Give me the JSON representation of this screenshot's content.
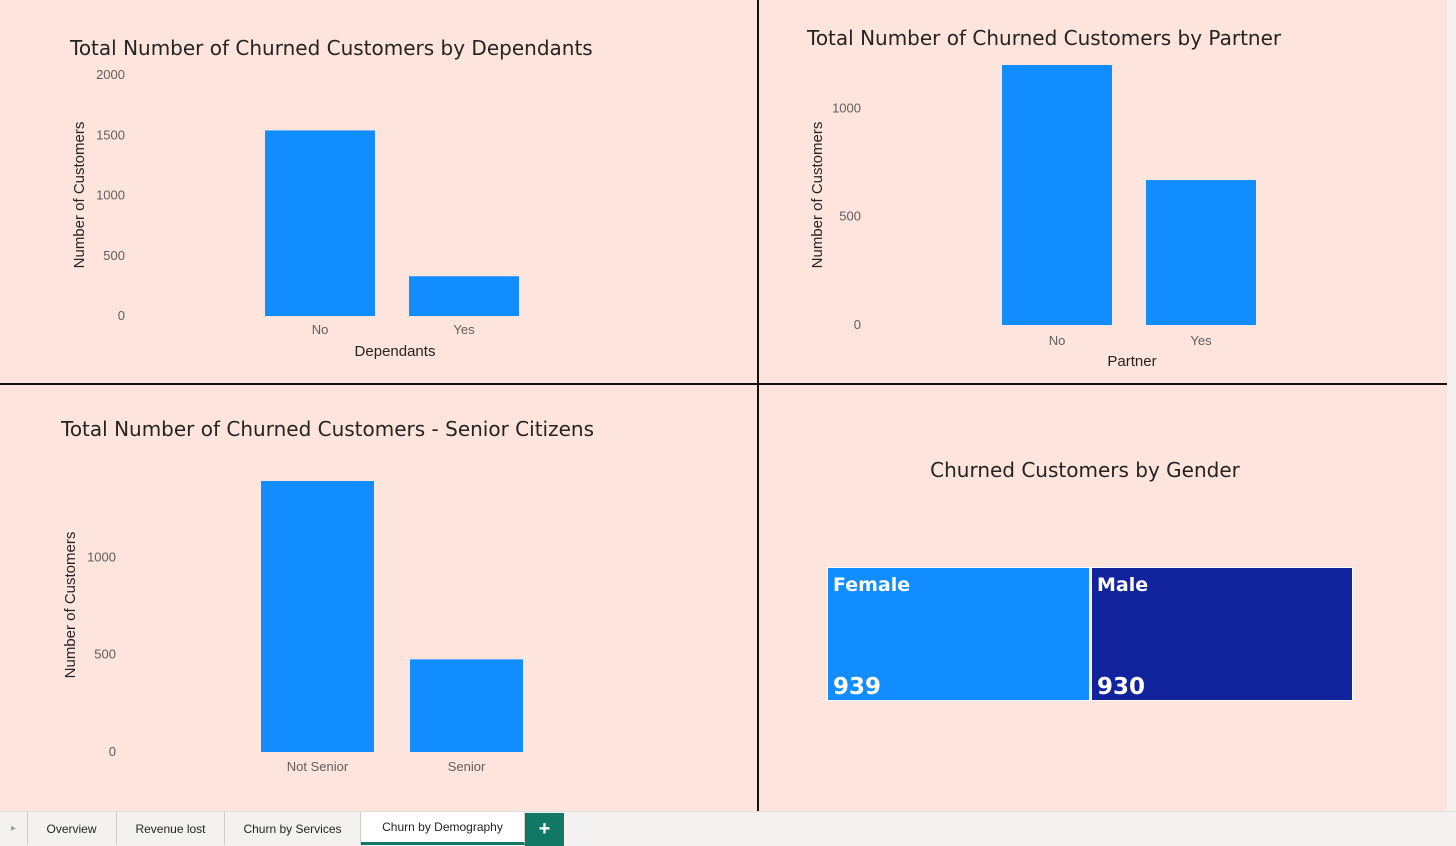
{
  "chart_data": [
    {
      "type": "bar",
      "title": "Total Number of Churned Customers by Dependants",
      "xlabel": "Dependants",
      "ylabel": "Number of Customers",
      "categories": [
        "No",
        "Yes"
      ],
      "values": [
        1540,
        330
      ],
      "ylim": [
        0,
        2000
      ],
      "yticks": [
        0,
        500,
        1000,
        1500,
        2000
      ],
      "color": "#118dff",
      "grid": false
    },
    {
      "type": "bar",
      "title": "Total Number of Churned Customers by Partner",
      "xlabel": "Partner",
      "ylabel": "Number of Customers",
      "categories": [
        "No",
        "Yes"
      ],
      "values": [
        1200,
        669
      ],
      "ylim": [
        0,
        1200
      ],
      "yticks": [
        0,
        500,
        1000
      ],
      "color": "#118dff",
      "grid": false
    },
    {
      "type": "bar",
      "title": "Total Number of Churned Customers - Senior Citizens",
      "xlabel": "",
      "ylabel": "Number of Customers",
      "categories": [
        "Not Senior",
        "Senior"
      ],
      "values": [
        1393,
        476
      ],
      "ylim": [
        0,
        1393
      ],
      "yticks": [
        0,
        500,
        1000
      ],
      "color": "#118dff",
      "grid": false
    },
    {
      "type": "treemap",
      "title": "Churned Customers by Gender",
      "categories": [
        "Female",
        "Male"
      ],
      "values": [
        939,
        930
      ],
      "colors": [
        "#118dff",
        "#12239e"
      ]
    }
  ],
  "tabs": {
    "items": [
      "Overview",
      "Revenue lost",
      "Churn by Services",
      "Churn by Demography"
    ],
    "active": "Churn by Demography",
    "add_label": "+"
  }
}
